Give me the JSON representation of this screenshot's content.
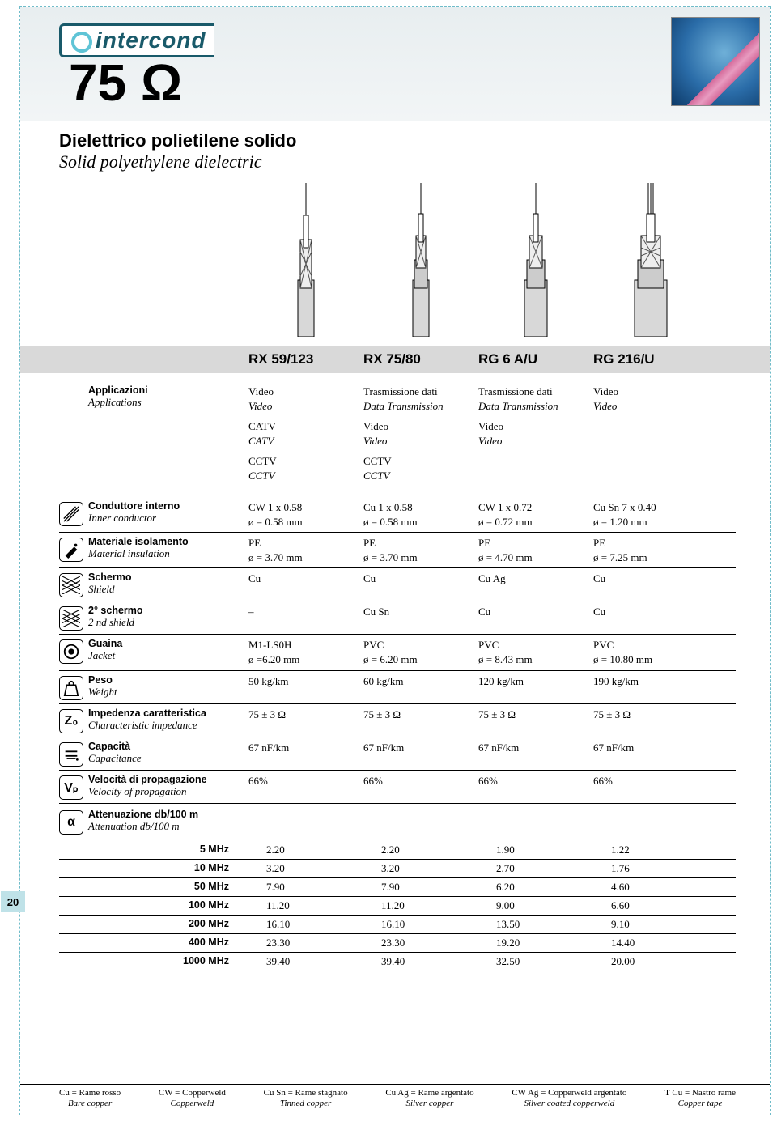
{
  "brand": "intercond",
  "page_number": "20",
  "impedance_title": "75 Ω",
  "section_title_it": "Dielettrico polietilene solido",
  "section_title_en": "Solid polyethylene dielectric",
  "models": [
    "RX 59/123",
    "RX 75/80",
    "RG 6 A/U",
    "RG 216/U"
  ],
  "applications_label_it": "Applicazioni",
  "applications_label_en": "Applications",
  "applications": [
    [
      {
        "it": "Video",
        "en": "Video"
      },
      {
        "it": "CATV",
        "en": "CATV"
      },
      {
        "it": "CCTV",
        "en": "CCTV"
      }
    ],
    [
      {
        "it": "Trasmissione dati",
        "en": "Data Transmission"
      },
      {
        "it": "Video",
        "en": "Video"
      },
      {
        "it": "CCTV",
        "en": "CCTV"
      }
    ],
    [
      {
        "it": "Trasmissione dati",
        "en": "Data Transmission"
      },
      {
        "it": "Video",
        "en": "Video"
      }
    ],
    [
      {
        "it": "Video",
        "en": "Video"
      }
    ]
  ],
  "specs": [
    {
      "icon": "conductor-icon",
      "label_it": "Conduttore interno",
      "label_en": "Inner conductor",
      "values": [
        [
          "CW  1 x 0.58",
          "ø = 0.58 mm"
        ],
        [
          "Cu  1 x 0.58",
          "ø = 0.58 mm"
        ],
        [
          "CW  1 x 0.72",
          "ø = 0.72 mm"
        ],
        [
          "Cu Sn  7 x 0.40",
          "ø = 1.20 mm"
        ]
      ]
    },
    {
      "icon": "insulation-icon",
      "label_it": "Materiale isolamento",
      "label_en": "Material insulation",
      "values": [
        [
          "PE",
          "ø = 3.70 mm"
        ],
        [
          "PE",
          "ø = 3.70 mm"
        ],
        [
          "PE",
          "ø = 4.70 mm"
        ],
        [
          "PE",
          "ø = 7.25 mm"
        ]
      ]
    },
    {
      "icon": "shield-icon",
      "label_it": "Schermo",
      "label_en": "Shield",
      "values": [
        [
          "Cu"
        ],
        [
          "Cu"
        ],
        [
          "Cu Ag"
        ],
        [
          "Cu"
        ]
      ]
    },
    {
      "icon": "shield2-icon",
      "label_it": "2° schermo",
      "label_en": "2 nd shield",
      "values": [
        [
          "–"
        ],
        [
          "Cu Sn"
        ],
        [
          "Cu"
        ],
        [
          "Cu"
        ]
      ]
    },
    {
      "icon": "jacket-icon",
      "label_it": "Guaina",
      "label_en": "Jacket",
      "values": [
        [
          "M1-LS0H",
          "ø =6.20 mm"
        ],
        [
          "PVC",
          "ø = 6.20 mm"
        ],
        [
          "PVC",
          "ø = 8.43 mm"
        ],
        [
          "PVC",
          "ø = 10.80 mm"
        ]
      ]
    },
    {
      "icon": "weight-icon",
      "label_it": "Peso",
      "label_en": "Weight",
      "values": [
        [
          "50 kg/km"
        ],
        [
          "60 kg/km"
        ],
        [
          "120 kg/km"
        ],
        [
          "190 kg/km"
        ]
      ]
    },
    {
      "icon": "impedance-icon",
      "label_it": "Impedenza caratteristica",
      "label_en": "Characteristic impedance",
      "values": [
        [
          "75 ± 3 Ω"
        ],
        [
          "75 ± 3 Ω"
        ],
        [
          "75 ± 3 Ω"
        ],
        [
          "75 ± 3 Ω"
        ]
      ]
    },
    {
      "icon": "capacitance-icon",
      "label_it": "Capacità",
      "label_en": "Capacitance",
      "values": [
        [
          "67 nF/km"
        ],
        [
          "67 nF/km"
        ],
        [
          "67 nF/km"
        ],
        [
          "67 nF/km"
        ]
      ]
    },
    {
      "icon": "velocity-icon",
      "label_it": "Velocità di propagazione",
      "label_en": "Velocity of propagation",
      "values": [
        [
          "66%"
        ],
        [
          "66%"
        ],
        [
          "66%"
        ],
        [
          "66%"
        ]
      ]
    }
  ],
  "attenuation_label_it": "Attenuazione db/100 m",
  "attenuation_label_en": "Attenuation db/100 m",
  "attenuation_icon": "alpha-icon",
  "attenuation": {
    "freqs": [
      "5 MHz",
      "10 MHz",
      "50 MHz",
      "100 MHz",
      "200 MHz",
      "400 MHz",
      "1000 MHz"
    ],
    "rows": [
      [
        "2.20",
        "2.20",
        "1.90",
        "1.22"
      ],
      [
        "3.20",
        "3.20",
        "2.70",
        "1.76"
      ],
      [
        "7.90",
        "7.90",
        "6.20",
        "4.60"
      ],
      [
        "11.20",
        "11.20",
        "9.00",
        "6.60"
      ],
      [
        "16.10",
        "16.10",
        "13.50",
        "9.10"
      ],
      [
        "23.30",
        "23.30",
        "19.20",
        "14.40"
      ],
      [
        "39.40",
        "39.40",
        "32.50",
        "20.00"
      ]
    ]
  },
  "legend": [
    {
      "it": "Cu = Rame rosso",
      "en": "Bare copper"
    },
    {
      "it": "CW = Copperweld",
      "en": "Copperweld"
    },
    {
      "it": "Cu Sn = Rame stagnato",
      "en": "Tinned copper"
    },
    {
      "it": "Cu Ag = Rame argentato",
      "en": "Silver copper"
    },
    {
      "it": "CW Ag = Copperweld argentato",
      "en": "Silver coated copperweld"
    },
    {
      "it": "T Cu = Nastro rame",
      "en": "Copper tape"
    }
  ],
  "colors": {
    "header_bar": "#d9d9d9",
    "border_dash": "#6fbcc9",
    "page_tab": "#bfe2e8",
    "logo": "#195a6a"
  },
  "icon_glyphs": {
    "impedance-icon": "Z₀",
    "velocity-icon": "Vₚ",
    "alpha-icon": "α"
  }
}
